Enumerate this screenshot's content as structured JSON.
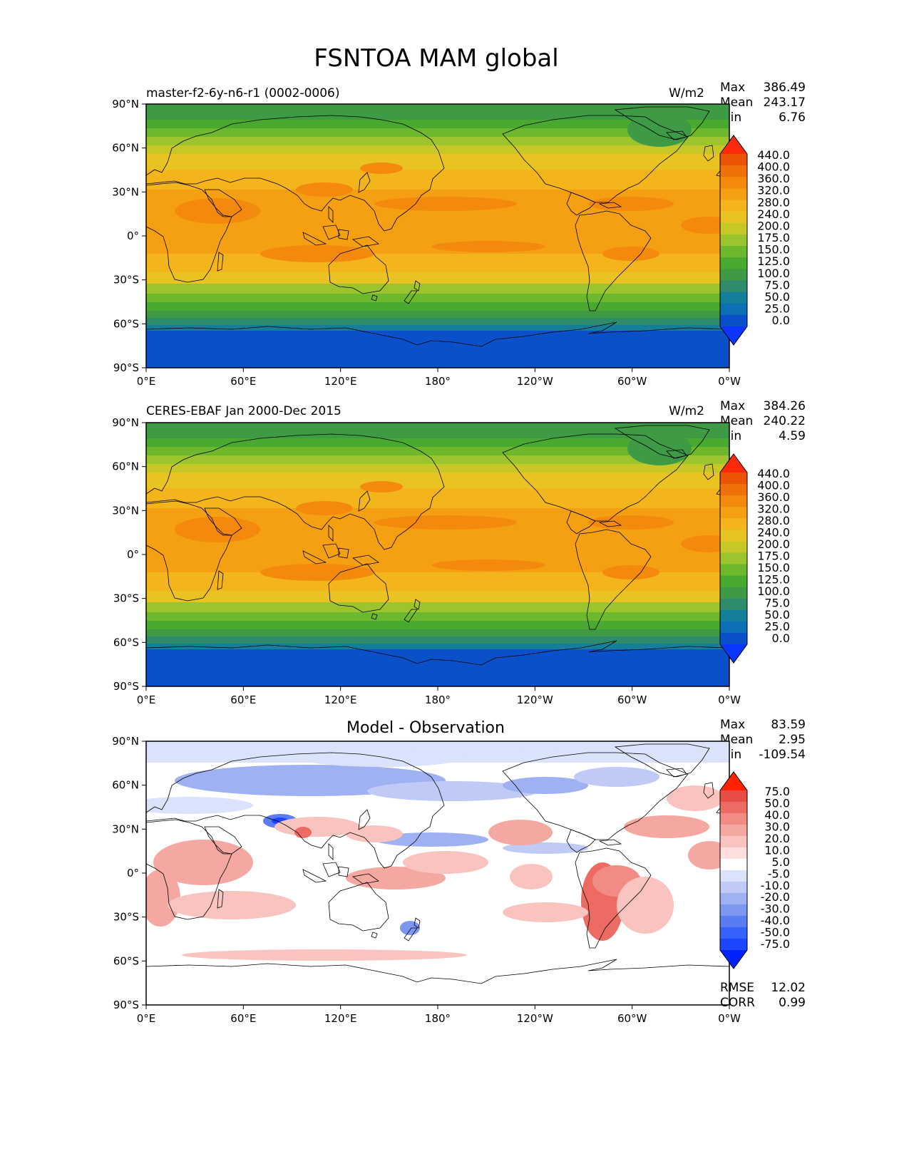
{
  "figure": {
    "title": "FSNTOA MAM global"
  },
  "lon_ticks": [
    "0°E",
    "60°E",
    "120°E",
    "180°",
    "120°W",
    "60°W",
    "0°W"
  ],
  "lat_ticks": [
    "90°N",
    "60°N",
    "30°N",
    "0°",
    "30°S",
    "60°S",
    "90°S"
  ],
  "colors": {
    "field": [
      "#0a50c8",
      "#0d6fb5",
      "#157f9a",
      "#2e8b6b",
      "#3f9a45",
      "#4aaa30",
      "#6eb82e",
      "#9cc42c",
      "#c7c828",
      "#e9c322",
      "#f3b51b",
      "#f5a013",
      "#f48a0d",
      "#f07008",
      "#ec5405"
    ],
    "field_under": "#0b36ff",
    "field_over": "#ff2a0a",
    "diff": [
      "#1b45ff",
      "#3562ff",
      "#5a7cf2",
      "#7d97f0",
      "#9fb1f2",
      "#bfcaf6",
      "#dbe2fb",
      "#ffffff",
      "#fde0de",
      "#f9c4c0",
      "#f5a8a2",
      "#f28b84",
      "#ec6c64",
      "#e84d45"
    ],
    "diff_under": "#0022ff",
    "diff_over": "#ff2200",
    "coast": "#000000"
  },
  "panels": [
    {
      "name": "test",
      "left_title": "master-f2-6y-n6-r1 (0002-0006)",
      "units": "W/m2",
      "stats_labels": [
        "Max",
        "Mean",
        "Min"
      ],
      "stats_values": [
        "386.49",
        "243.17",
        "6.76"
      ],
      "colorbar_labels": [
        "440.0",
        "400.0",
        "360.0",
        "320.0",
        "280.0",
        "240.0",
        "200.0",
        "175.0",
        "150.0",
        "125.0",
        "100.0",
        "75.0",
        "50.0",
        "25.0",
        "0.0"
      ]
    },
    {
      "name": "reference",
      "left_title": "CERES-EBAF Jan 2000-Dec 2015",
      "units": "W/m2",
      "stats_labels": [
        "Max",
        "Mean",
        "Min"
      ],
      "stats_values": [
        "384.26",
        "240.22",
        "4.59"
      ],
      "colorbar_labels": [
        "440.0",
        "400.0",
        "360.0",
        "320.0",
        "280.0",
        "240.0",
        "200.0",
        "175.0",
        "150.0",
        "125.0",
        "100.0",
        "75.0",
        "50.0",
        "25.0",
        "0.0"
      ]
    },
    {
      "name": "difference",
      "center_title": "Model - Observation",
      "stats_labels": [
        "Max",
        "Mean",
        "Min"
      ],
      "stats_values": [
        "83.59",
        "2.95",
        "-109.54"
      ],
      "colorbar_labels": [
        "75.0",
        "50.0",
        "40.0",
        "30.0",
        "20.0",
        "10.0",
        "5.0",
        "-5.0",
        "-10.0",
        "-20.0",
        "-30.0",
        "-40.0",
        "-50.0",
        "-75.0"
      ],
      "extra_labels": [
        "RMSE",
        "CORR"
      ],
      "extra_values": [
        "12.02",
        "0.99"
      ]
    }
  ]
}
